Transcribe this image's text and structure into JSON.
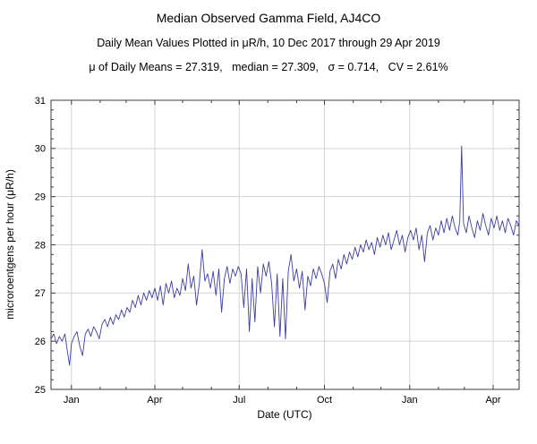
{
  "header": {
    "title": "Median Observed Gamma Field, AJ4CO",
    "subtitle": "Daily Mean Values Plotted in μR/h, 10 Dec 2017 through 29 Apr 2019",
    "stats_line": "μ of Daily Means = 27.319,   median = 27.309,   σ = 0.714,   CV = 2.61%"
  },
  "chart_data": {
    "type": "line",
    "title": "Median Observed Gamma Field, AJ4CO",
    "xlabel": "Date (UTC)",
    "ylabel": "microroentgens per hour (μR/h)",
    "ylim": [
      25,
      31
    ],
    "x_range_days": [
      0,
      505
    ],
    "x_start_date": "10 Dec 2017",
    "x_end_date": "29 Apr 2019",
    "y_ticks": [
      25,
      26,
      27,
      28,
      29,
      30,
      31
    ],
    "x_major_ticks": [
      {
        "day": 22,
        "label": "Jan"
      },
      {
        "day": 112,
        "label": "Apr"
      },
      {
        "day": 203,
        "label": "Jul"
      },
      {
        "day": 295,
        "label": "Oct"
      },
      {
        "day": 387,
        "label": "Jan"
      },
      {
        "day": 477,
        "label": "Apr"
      }
    ],
    "x_minor_tick_days": [
      53,
      81,
      142,
      173,
      234,
      265,
      326,
      356,
      418,
      446
    ],
    "stats": {
      "mean_of_daily_means": 27.319,
      "median": 27.309,
      "sigma": 0.714,
      "cv_percent": 2.61
    },
    "line_color": "#3d3da0",
    "grid_color": "#d4d4d4",
    "frame_color": "#3c3c3c",
    "grid_on": true,
    "legend": "none",
    "x_days": [
      0,
      3,
      6,
      9,
      12,
      15,
      18,
      20,
      22,
      25,
      28,
      31,
      34,
      37,
      40,
      43,
      46,
      49,
      52,
      55,
      58,
      61,
      64,
      67,
      70,
      73,
      76,
      79,
      82,
      85,
      88,
      91,
      94,
      97,
      100,
      103,
      106,
      109,
      112,
      115,
      118,
      121,
      124,
      127,
      130,
      133,
      136,
      139,
      142,
      145,
      148,
      151,
      154,
      157,
      160,
      163,
      166,
      169,
      172,
      175,
      178,
      181,
      184,
      187,
      190,
      193,
      196,
      199,
      202,
      205,
      208,
      211,
      214,
      217,
      220,
      223,
      226,
      229,
      232,
      235,
      238,
      241,
      244,
      247,
      250,
      253,
      256,
      259,
      262,
      265,
      268,
      271,
      274,
      277,
      280,
      283,
      286,
      289,
      292,
      295,
      298,
      301,
      304,
      307,
      310,
      313,
      316,
      319,
      322,
      325,
      328,
      331,
      334,
      337,
      340,
      343,
      346,
      349,
      352,
      355,
      358,
      361,
      364,
      367,
      370,
      373,
      376,
      379,
      382,
      385,
      388,
      391,
      394,
      397,
      400,
      403,
      406,
      409,
      412,
      415,
      418,
      421,
      424,
      427,
      430,
      433,
      436,
      439,
      441,
      443,
      445,
      448,
      451,
      454,
      457,
      460,
      463,
      466,
      469,
      472,
      475,
      478,
      481,
      484,
      487,
      490,
      493,
      496,
      499,
      502,
      505
    ],
    "values": [
      26.05,
      26.15,
      25.95,
      26.1,
      26.0,
      26.15,
      25.75,
      25.5,
      25.95,
      26.1,
      26.2,
      25.9,
      25.7,
      26.15,
      26.25,
      26.1,
      26.3,
      26.2,
      26.05,
      26.35,
      26.45,
      26.3,
      26.5,
      26.35,
      26.55,
      26.45,
      26.65,
      26.5,
      26.7,
      26.6,
      26.85,
      26.7,
      26.95,
      26.75,
      27.0,
      26.85,
      27.05,
      26.9,
      27.1,
      26.85,
      27.15,
      26.75,
      27.2,
      27.0,
      27.25,
      26.9,
      27.1,
      26.95,
      27.3,
      27.05,
      27.6,
      27.1,
      27.35,
      26.75,
      27.2,
      27.9,
      27.25,
      27.4,
      27.1,
      27.45,
      26.95,
      27.5,
      26.6,
      27.3,
      27.55,
      27.2,
      27.5,
      27.35,
      27.55,
      27.4,
      26.7,
      27.5,
      26.2,
      27.3,
      26.4,
      27.55,
      27.0,
      27.6,
      27.35,
      27.65,
      27.2,
      26.3,
      27.4,
      26.1,
      27.3,
      26.05,
      27.45,
      27.8,
      27.25,
      27.5,
      27.1,
      27.45,
      26.65,
      27.35,
      27.15,
      27.5,
      27.3,
      27.55,
      27.4,
      27.2,
      26.8,
      27.45,
      27.6,
      27.3,
      27.7,
      27.5,
      27.8,
      27.6,
      27.85,
      27.7,
      27.95,
      27.75,
      28.0,
      27.85,
      28.1,
      27.9,
      28.05,
      27.8,
      28.15,
      27.95,
      28.2,
      28.0,
      28.25,
      27.9,
      28.1,
      28.3,
      28.0,
      28.2,
      27.85,
      28.15,
      28.3,
      28.1,
      28.35,
      27.9,
      28.2,
      27.65,
      28.25,
      28.4,
      28.1,
      28.35,
      28.2,
      28.5,
      28.25,
      28.55,
      28.3,
      28.6,
      28.35,
      28.2,
      28.5,
      30.05,
      28.45,
      28.25,
      28.6,
      28.35,
      28.15,
      28.5,
      28.3,
      28.65,
      28.4,
      28.2,
      28.55,
      28.35,
      28.6,
      28.3,
      28.5,
      28.25,
      28.55,
      28.4,
      28.2,
      28.5,
      28.4
    ]
  }
}
